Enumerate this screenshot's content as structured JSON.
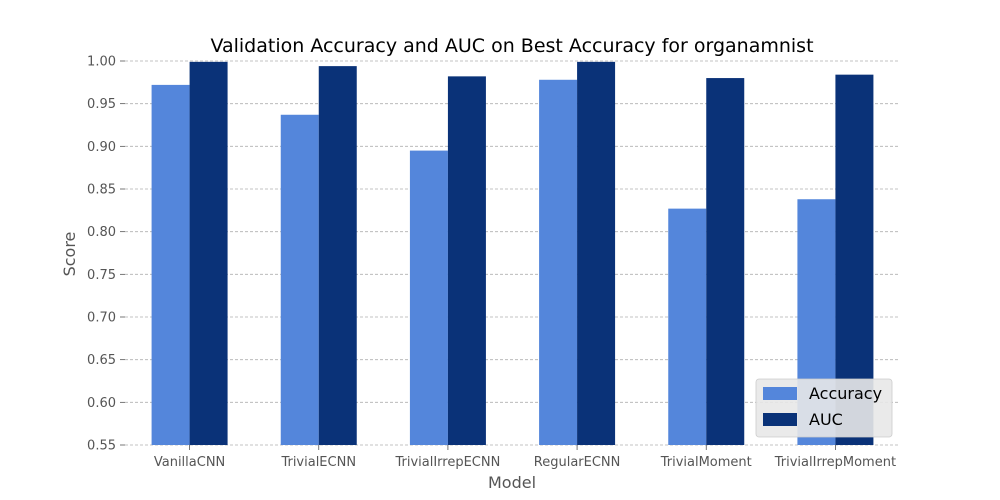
{
  "chart_data": {
    "type": "bar",
    "title": "Validation Accuracy and AUC on Best Accuracy for organamnist",
    "xlabel": "Model",
    "ylabel": "Score",
    "ylim": [
      0.55,
      1.0
    ],
    "yticks": [
      "0.55",
      "0.60",
      "0.65",
      "0.70",
      "0.75",
      "0.80",
      "0.85",
      "0.90",
      "0.95",
      "1.00"
    ],
    "categories": [
      "VanillaCNN",
      "TrivialECNN",
      "TrivialIrrepECNN",
      "RegularECNN",
      "TrivialMoment",
      "TrivialIrrepMoment"
    ],
    "series": [
      {
        "name": "Accuracy",
        "color": "#5486db",
        "values": [
          0.972,
          0.937,
          0.895,
          0.978,
          0.827,
          0.838
        ]
      },
      {
        "name": "AUC",
        "color": "#0a3278",
        "values": [
          0.999,
          0.994,
          0.982,
          0.999,
          0.98,
          0.984
        ]
      }
    ],
    "grid": "y-dashed",
    "legend_position": "bottom-right"
  }
}
